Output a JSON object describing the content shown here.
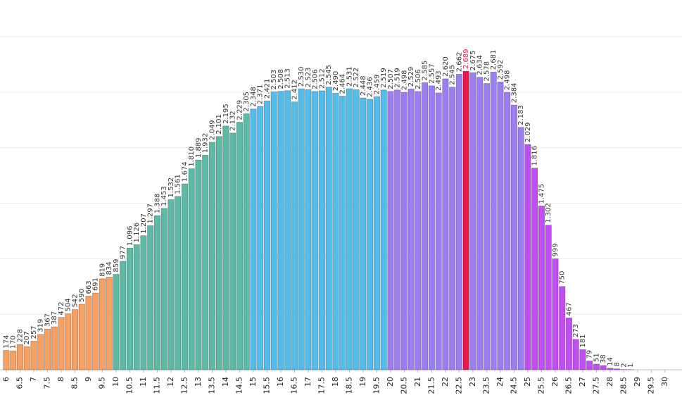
{
  "chart_data": {
    "type": "bar",
    "x": [
      6,
      6.25,
      6.5,
      6.75,
      7,
      7.25,
      7.5,
      7.75,
      8,
      8.25,
      8.5,
      8.75,
      9,
      9.25,
      9.5,
      9.75,
      10,
      10.25,
      10.5,
      10.75,
      11,
      11.25,
      11.5,
      11.75,
      12,
      12.25,
      12.5,
      12.75,
      13,
      13.25,
      13.5,
      13.75,
      14,
      14.25,
      14.5,
      14.75,
      15,
      15.25,
      15.5,
      15.75,
      16,
      16.25,
      16.5,
      16.75,
      17,
      17.25,
      17.5,
      17.75,
      18,
      18.25,
      18.5,
      18.75,
      19,
      19.25,
      19.5,
      19.75,
      20,
      20.25,
      20.5,
      20.75,
      21,
      21.25,
      21.5,
      21.75,
      22,
      22.25,
      22.5,
      22.75,
      23,
      23.25,
      23.5,
      23.75,
      24,
      24.25,
      24.5,
      24.75,
      25,
      25.25,
      25.5,
      25.75,
      26,
      26.25,
      26.5,
      26.75,
      27,
      27.25,
      27.5,
      27.75,
      28,
      28.25,
      28.5,
      28.75
    ],
    "values": [
      174,
      170,
      228,
      207,
      257,
      319,
      367,
      387,
      472,
      504,
      542,
      590,
      663,
      691,
      819,
      834,
      859,
      977,
      1096,
      1126,
      1207,
      1297,
      1388,
      1453,
      1532,
      1561,
      1674,
      1810,
      1889,
      1932,
      2049,
      2101,
      2195,
      2132,
      2229,
      2305,
      2348,
      2371,
      2421,
      2503,
      2508,
      2513,
      2412,
      2530,
      2523,
      2506,
      2512,
      2545,
      2490,
      2464,
      2531,
      2522,
      2448,
      2436,
      2459,
      2519,
      2507,
      2519,
      2498,
      2529,
      2506,
      2585,
      2557,
      2493,
      2620,
      2545,
      2662,
      2689,
      2675,
      2634,
      2578,
      2681,
      2592,
      2498,
      2384,
      2183,
      2029,
      1816,
      1475,
      1302,
      999,
      750,
      467,
      273,
      181,
      79,
      51,
      38,
      14,
      8,
      2,
      1
    ],
    "value_labels": [
      "174",
      "170",
      "228",
      "207",
      "257",
      "319",
      "367",
      "387",
      "472",
      "504",
      "542",
      "590",
      "663",
      "691",
      "819",
      "834",
      "859",
      "977",
      "1.096",
      "1.126",
      "1.207",
      "1.297",
      "1.388",
      "1.453",
      "1.532",
      "1.561",
      "1.674",
      "1.810",
      "1.889",
      "1.932",
      "2.049",
      "2.101",
      "2.195",
      "2.132",
      "2.229",
      "2.305",
      "2.348",
      "2.371",
      "2.421",
      "2.503",
      "2.508",
      "2.513",
      "2.412",
      "2.530",
      "2.523",
      "2.506",
      "2.512",
      "2.545",
      "2.490",
      "2.464",
      "2.531",
      "2.522",
      "2.448",
      "2.436",
      "2.459",
      "2.519",
      "2.507",
      "2.519",
      "2.498",
      "2.529",
      "2.506",
      "2.585",
      "2.557",
      "2.493",
      "2.620",
      "2.545",
      "2.662",
      "2.689",
      "2.675",
      "2.634",
      "2.578",
      "2.681",
      "2.592",
      "2.498",
      "2.384",
      "2.183",
      "2.029",
      "1.816",
      "1.475",
      "1.302",
      "999",
      "750",
      "467",
      "273",
      "181",
      "79",
      "51",
      "38",
      "14",
      "8",
      "2",
      "1"
    ],
    "colors": [
      "#f7a062",
      "#f7a062",
      "#f7a062",
      "#f7a062",
      "#f7a062",
      "#f7a062",
      "#f7a062",
      "#f7a062",
      "#f7a062",
      "#f7a062",
      "#f7a062",
      "#f7a062",
      "#f7a062",
      "#f7a062",
      "#f7a062",
      "#f7a062",
      "#5dbba5",
      "#5dbba5",
      "#5dbba5",
      "#5dbba5",
      "#5dbba5",
      "#5dbba5",
      "#5dbba5",
      "#5dbba5",
      "#5dbba5",
      "#5dbba5",
      "#5dbba5",
      "#5dbba5",
      "#5dbba5",
      "#5dbba5",
      "#5dbba5",
      "#5dbba5",
      "#5dbba5",
      "#5dbba5",
      "#5dbba5",
      "#5dbba5",
      "#52bdea",
      "#52bdea",
      "#52bdea",
      "#52bdea",
      "#52bdea",
      "#52bdea",
      "#52bdea",
      "#52bdea",
      "#52bdea",
      "#52bdea",
      "#52bdea",
      "#52bdea",
      "#52bdea",
      "#52bdea",
      "#52bdea",
      "#52bdea",
      "#52bdea",
      "#52bdea",
      "#52bdea",
      "#52bdea",
      "#9b7ef2",
      "#9b7ef2",
      "#9b7ef2",
      "#9b7ef2",
      "#9b7ef2",
      "#9b7ef2",
      "#9b7ef2",
      "#9b7ef2",
      "#9b7ef2",
      "#9b7ef2",
      "#9b7ef2",
      "#e8194a",
      "#9b7ef2",
      "#9b7ef2",
      "#9b7ef2",
      "#9b7ef2",
      "#9b7ef2",
      "#9b7ef2",
      "#9b7ef2",
      "#9b7ef2",
      "#c04ef2",
      "#c04ef2",
      "#c04ef2",
      "#c04ef2",
      "#c04ef2",
      "#c04ef2",
      "#c04ef2",
      "#c04ef2",
      "#c04ef2",
      "#c04ef2",
      "#c04ef2",
      "#c04ef2",
      "#c04ef2",
      "#c04ef2",
      "#c04ef2",
      "#c04ef2"
    ],
    "highlight_color": "#e8194a",
    "xlim": [
      5.77,
      30.31
    ],
    "xticks": [
      6,
      6.5,
      7,
      7.5,
      8,
      8.5,
      9,
      9.5,
      10,
      10.5,
      11,
      11.5,
      12,
      12.5,
      13,
      13.5,
      14,
      14.5,
      15,
      15.5,
      16,
      16.5,
      17,
      17.5,
      18,
      18.5,
      19,
      19.5,
      20,
      20.5,
      21,
      21.5,
      22,
      22.5,
      23,
      23.5,
      24,
      24.5,
      25,
      25.5,
      26,
      26.5,
      27,
      27.5,
      28,
      28.5,
      29,
      29.5,
      30
    ],
    "ylim": [
      0,
      3000
    ],
    "yticks": [
      0,
      500,
      1000,
      1500,
      2000,
      2500,
      3000
    ],
    "grid": true
  }
}
